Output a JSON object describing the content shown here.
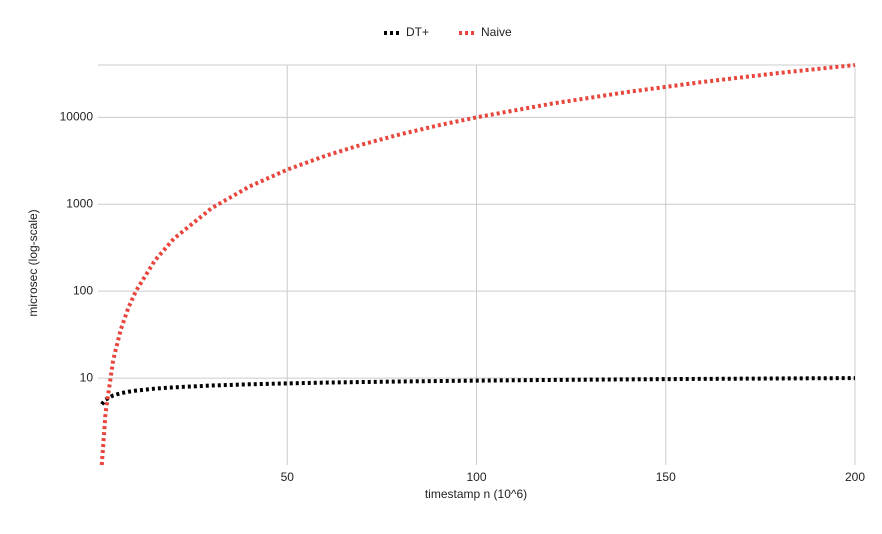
{
  "chart_data": {
    "type": "line",
    "x_label": "timestamp n (10^6)",
    "y_label": "microsec (log-scale)",
    "x": [
      1,
      2,
      4,
      6,
      8,
      10,
      15,
      20,
      30,
      40,
      50,
      60,
      70,
      80,
      90,
      100,
      120,
      140,
      160,
      180,
      200
    ],
    "series": [
      {
        "name": "DT+",
        "color": "#000000",
        "values": [
          5.0,
          5.65,
          6.31,
          6.69,
          6.96,
          7.17,
          7.56,
          7.83,
          8.21,
          8.48,
          8.69,
          8.87,
          9.01,
          9.14,
          9.25,
          9.35,
          9.52,
          9.67,
          9.79,
          9.9,
          10.0
        ]
      },
      {
        "name": "Naive",
        "color": "#e8453c",
        "values": [
          1,
          4,
          16,
          36,
          64,
          100,
          225,
          400,
          900,
          1600,
          2500,
          3600,
          4900,
          6400,
          8100,
          10000,
          14400,
          19600,
          25600,
          32400,
          40000
        ]
      }
    ],
    "xlim": [
      0,
      200
    ],
    "xticks": [
      50,
      100,
      150,
      200
    ],
    "ylim": [
      1,
      40000
    ],
    "yticks": [
      10,
      100,
      1000,
      10000
    ],
    "log_y": true,
    "grid": true,
    "legend": "top"
  }
}
